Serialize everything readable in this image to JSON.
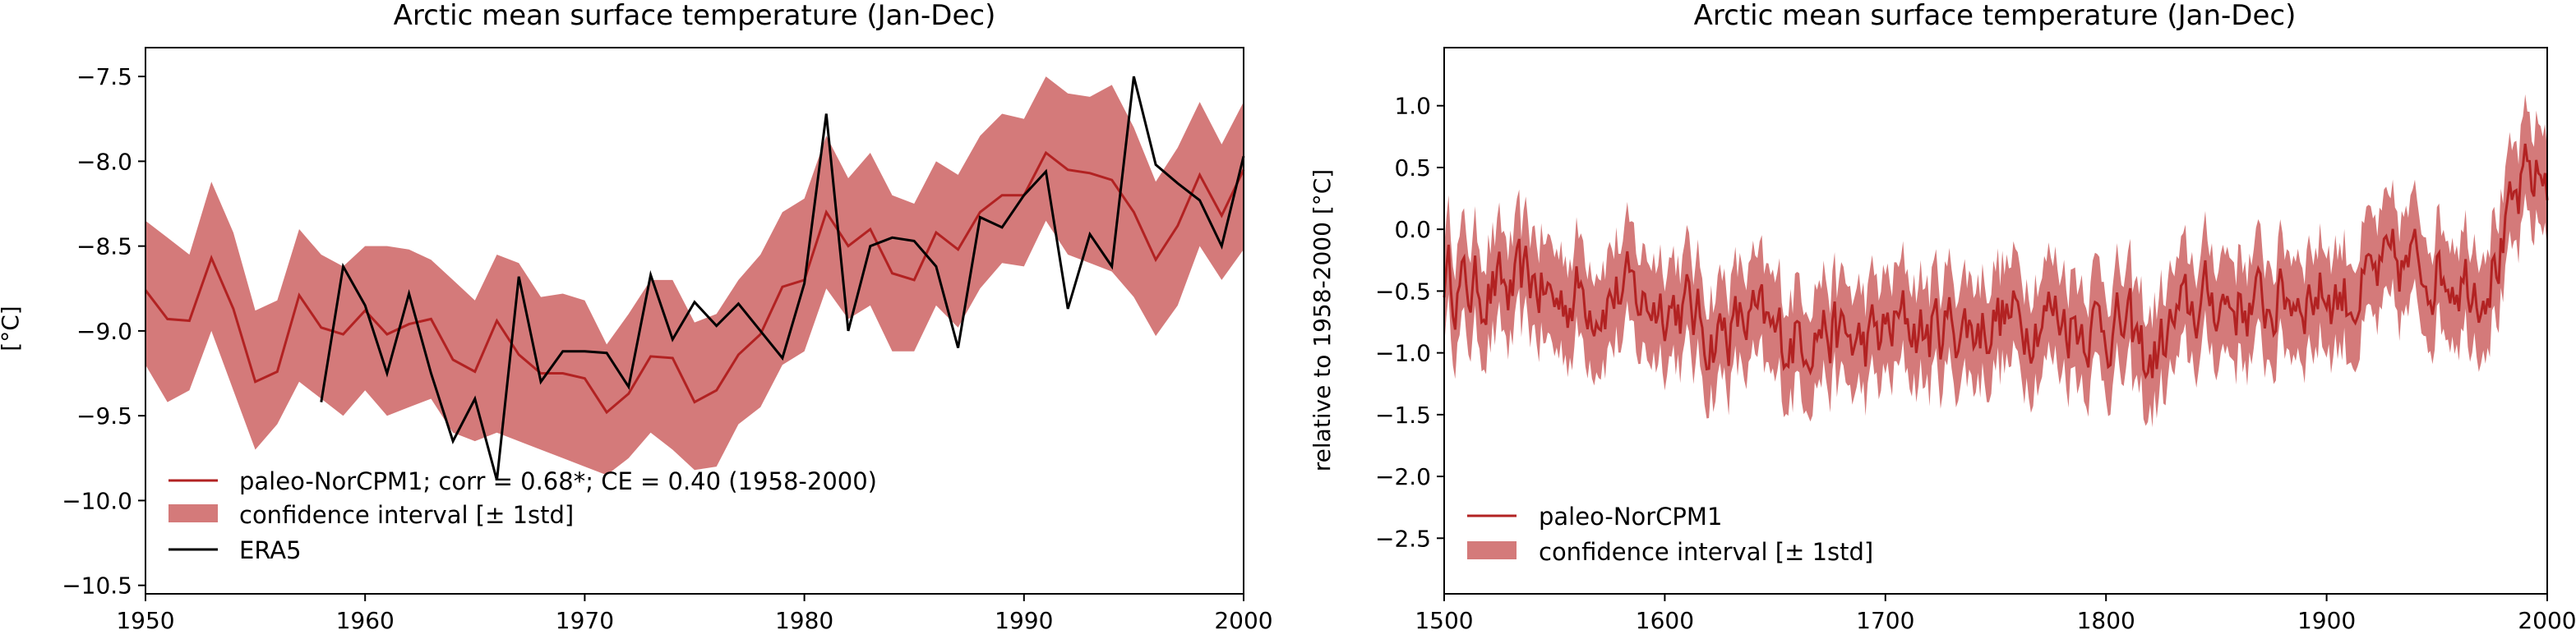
{
  "chart_data": [
    {
      "type": "line",
      "title": "Arctic mean surface temperature (Jan-Dec)",
      "xlabel": "",
      "ylabel": "[°C]",
      "xlim": [
        1950,
        2000
      ],
      "ylim": [
        -10.55,
        -7.33
      ],
      "xticks": [
        1950,
        1960,
        1970,
        1980,
        1990,
        2000
      ],
      "yticks": [
        -10.5,
        -10.0,
        -9.5,
        -9.0,
        -8.5,
        -8.0,
        -7.5
      ],
      "legend": {
        "placement": "lower-left",
        "entries": [
          "paleo-NorCPM1; corr = 0.68*; CE = 0.40 (1958-2000)",
          "confidence interval [± 1std]",
          "ERA5"
        ]
      },
      "colors": {
        "mean": "#b22222",
        "band": "#d47a7a",
        "obs": "#000000"
      },
      "series": [
        {
          "name": "paleo-NorCPM1; corr = 0.68*; CE = 0.40 (1958-2000)",
          "x": [
            1950,
            1951,
            1952,
            1953,
            1954,
            1955,
            1956,
            1957,
            1958,
            1959,
            1960,
            1961,
            1962,
            1963,
            1964,
            1965,
            1966,
            1967,
            1968,
            1969,
            1970,
            1971,
            1972,
            1973,
            1974,
            1975,
            1976,
            1977,
            1978,
            1979,
            1980,
            1981,
            1982,
            1983,
            1984,
            1985,
            1986,
            1987,
            1988,
            1989,
            1990,
            1991,
            1992,
            1993,
            1994,
            1995,
            1996,
            1997,
            1998,
            1999,
            2000
          ],
          "y": [
            -8.76,
            -8.93,
            -8.94,
            -8.57,
            -8.87,
            -9.3,
            -9.24,
            -8.79,
            -8.98,
            -9.02,
            -8.88,
            -9.02,
            -8.96,
            -8.93,
            -9.17,
            -9.24,
            -8.94,
            -9.14,
            -9.25,
            -9.25,
            -9.28,
            -9.48,
            -9.37,
            -9.15,
            -9.16,
            -9.42,
            -9.35,
            -9.14,
            -9.02,
            -8.74,
            -8.7,
            -8.3,
            -8.5,
            -8.4,
            -8.66,
            -8.7,
            -8.42,
            -8.52,
            -8.3,
            -8.2,
            -8.2,
            -7.95,
            -8.05,
            -8.07,
            -8.11,
            -8.3,
            -8.58,
            -8.38,
            -8.08,
            -8.32,
            -8.05
          ]
        },
        {
          "name": "confidence interval [± 1std]",
          "x": [
            1950,
            1951,
            1952,
            1953,
            1954,
            1955,
            1956,
            1957,
            1958,
            1959,
            1960,
            1961,
            1962,
            1963,
            1964,
            1965,
            1966,
            1967,
            1968,
            1969,
            1970,
            1971,
            1972,
            1973,
            1974,
            1975,
            1976,
            1977,
            1978,
            1979,
            1980,
            1981,
            1982,
            1983,
            1984,
            1985,
            1986,
            1987,
            1988,
            1989,
            1990,
            1991,
            1992,
            1993,
            1994,
            1995,
            1996,
            1997,
            1998,
            1999,
            2000
          ],
          "lower": [
            -9.2,
            -9.42,
            -9.35,
            -9.0,
            -9.35,
            -9.7,
            -9.55,
            -9.3,
            -9.4,
            -9.5,
            -9.35,
            -9.5,
            -9.45,
            -9.4,
            -9.6,
            -9.65,
            -9.6,
            -9.65,
            -9.7,
            -9.75,
            -9.8,
            -9.85,
            -9.75,
            -9.6,
            -9.7,
            -9.82,
            -9.8,
            -9.55,
            -9.45,
            -9.2,
            -9.12,
            -8.75,
            -8.93,
            -8.85,
            -9.12,
            -9.12,
            -8.85,
            -8.98,
            -8.75,
            -8.6,
            -8.62,
            -8.35,
            -8.55,
            -8.6,
            -8.65,
            -8.8,
            -9.03,
            -8.85,
            -8.5,
            -8.7,
            -8.52
          ],
          "upper": [
            -8.35,
            -8.45,
            -8.55,
            -8.12,
            -8.42,
            -8.88,
            -8.82,
            -8.4,
            -8.55,
            -8.62,
            -8.5,
            -8.5,
            -8.52,
            -8.58,
            -8.7,
            -8.82,
            -8.55,
            -8.6,
            -8.8,
            -8.78,
            -8.82,
            -9.08,
            -8.9,
            -8.7,
            -8.7,
            -8.95,
            -8.9,
            -8.7,
            -8.55,
            -8.3,
            -8.22,
            -7.85,
            -8.1,
            -7.95,
            -8.2,
            -8.25,
            -8.0,
            -8.08,
            -7.85,
            -7.72,
            -7.75,
            -7.5,
            -7.6,
            -7.62,
            -7.55,
            -7.8,
            -8.12,
            -7.92,
            -7.65,
            -7.9,
            -7.65
          ]
        },
        {
          "name": "ERA5",
          "x": [
            1958,
            1959,
            1960,
            1961,
            1962,
            1963,
            1964,
            1965,
            1966,
            1967,
            1968,
            1969,
            1970,
            1971,
            1972,
            1973,
            1974,
            1975,
            1976,
            1977,
            1978,
            1979,
            1980,
            1981,
            1982,
            1983,
            1984,
            1985,
            1986,
            1987,
            1988,
            1989,
            1990,
            1991,
            1992,
            1993,
            1994,
            1995,
            1996,
            1997,
            1998,
            1999,
            2000
          ],
          "y": [
            -9.42,
            -8.62,
            -8.85,
            -9.25,
            -8.78,
            -9.25,
            -9.65,
            -9.4,
            -9.88,
            -8.68,
            -9.3,
            -9.12,
            -9.12,
            -9.13,
            -9.33,
            -8.67,
            -9.05,
            -8.83,
            -8.97,
            -8.84,
            -9.0,
            -9.16,
            -8.72,
            -7.72,
            -9.0,
            -8.5,
            -8.45,
            -8.47,
            -8.62,
            -9.1,
            -8.33,
            -8.39,
            -8.2,
            -8.06,
            -8.87,
            -8.43,
            -8.62,
            -7.5,
            -8.02,
            -8.13,
            -8.23,
            -8.5,
            -7.97
          ]
        }
      ]
    },
    {
      "type": "line",
      "title": "Arctic mean surface temperature (Jan-Dec)",
      "xlabel": "",
      "ylabel": "relative to 1958-2000 [°C]",
      "xlim": [
        1500,
        2000
      ],
      "ylim": [
        -2.95,
        1.47
      ],
      "xticks": [
        1500,
        1600,
        1700,
        1800,
        1900,
        2000
      ],
      "yticks": [
        -2.5,
        -2.0,
        -1.5,
        -1.0,
        -0.5,
        0.0,
        0.5,
        1.0
      ],
      "legend": {
        "placement": "lower-left",
        "entries": [
          "paleo-NorCPM1",
          "confidence interval [± 1std]"
        ]
      },
      "colors": {
        "mean": "#b22222",
        "band": "#d47a7a"
      },
      "band_half_width": 0.4,
      "series": [
        {
          "name": "paleo-NorCPM1",
          "x": [
            1500,
            1510,
            1520,
            1530,
            1540,
            1550,
            1560,
            1570,
            1580,
            1590,
            1600,
            1610,
            1620,
            1630,
            1640,
            1650,
            1660,
            1670,
            1680,
            1690,
            1700,
            1710,
            1720,
            1730,
            1740,
            1750,
            1760,
            1770,
            1780,
            1790,
            1800,
            1810,
            1820,
            1830,
            1840,
            1850,
            1860,
            1870,
            1880,
            1890,
            1900,
            1910,
            1920,
            1930,
            1940,
            1950,
            1960,
            1970,
            1980,
            1990,
            2000
          ],
          "y": [
            -0.35,
            -0.5,
            -0.45,
            -0.55,
            -0.4,
            -0.6,
            -0.5,
            -0.55,
            -0.5,
            -0.6,
            -0.55,
            -0.65,
            -0.85,
            -0.8,
            -0.75,
            -0.9,
            -0.85,
            -0.75,
            -0.9,
            -0.95,
            -0.85,
            -0.75,
            -0.85,
            -0.75,
            -0.8,
            -0.7,
            -0.75,
            -0.65,
            -0.7,
            -0.75,
            -0.75,
            -0.85,
            -1.1,
            -0.8,
            -0.65,
            -0.55,
            -0.6,
            -0.65,
            -0.55,
            -0.5,
            -0.5,
            -0.55,
            -0.45,
            -0.35,
            -0.3,
            -0.3,
            -0.35,
            -0.4,
            -0.15,
            0.35,
            0.45
          ]
        }
      ]
    }
  ]
}
